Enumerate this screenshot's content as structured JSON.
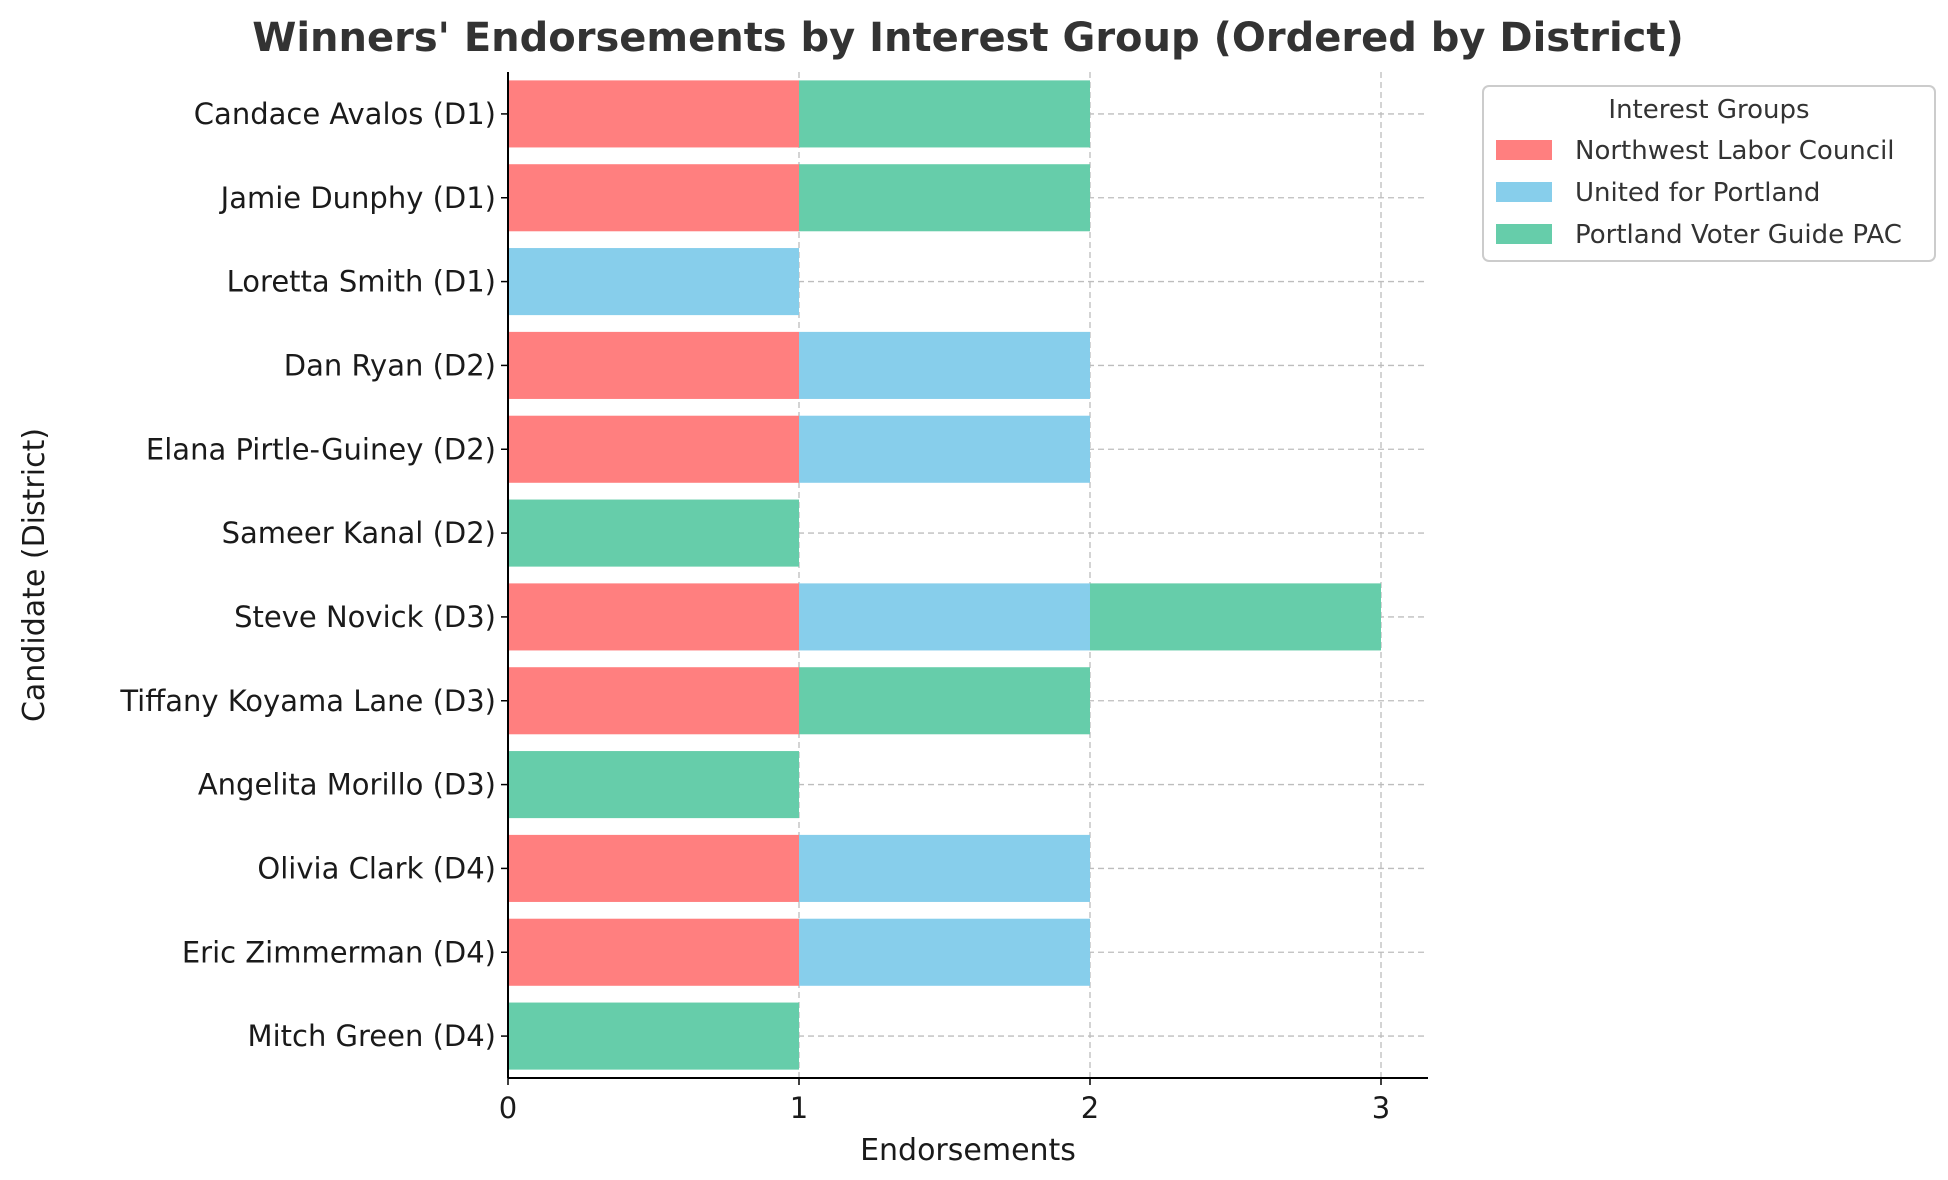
{
  "chart_data": {
    "type": "bar",
    "orientation": "horizontal",
    "stacked": true,
    "title": "Winners' Endorsements by Interest Group (Ordered by District)",
    "xlabel": "Endorsements",
    "ylabel": "Candidate (District)",
    "xlim": [
      0,
      3.15
    ],
    "xticks": [
      0,
      1,
      2,
      3
    ],
    "grid": true,
    "legend": {
      "title": "Interest Groups",
      "placement": "outside-top-right"
    },
    "categories": [
      "Candace Avalos (D1)",
      "Jamie Dunphy (D1)",
      "Loretta Smith (D1)",
      "Dan Ryan (D2)",
      "Elana Pirtle-Guiney (D2)",
      "Sameer Kanal (D2)",
      "Steve Novick (D3)",
      "Tiffany Koyama Lane (D3)",
      "Angelita Morillo (D3)",
      "Olivia Clark (D4)",
      "Eric Zimmerman (D4)",
      "Mitch Green (D4)"
    ],
    "series": [
      {
        "name": "Northwest Labor Council",
        "color": "#ff7f7f",
        "values": [
          1,
          1,
          0,
          1,
          1,
          0,
          1,
          1,
          0,
          1,
          1,
          0
        ]
      },
      {
        "name": "United for Portland",
        "color": "#87ceeb",
        "values": [
          0,
          0,
          1,
          1,
          1,
          0,
          1,
          0,
          0,
          1,
          1,
          0
        ]
      },
      {
        "name": "Portland Voter Guide PAC",
        "color": "#66cdaa",
        "values": [
          1,
          1,
          0,
          0,
          0,
          1,
          1,
          1,
          1,
          0,
          0,
          1
        ]
      }
    ]
  }
}
